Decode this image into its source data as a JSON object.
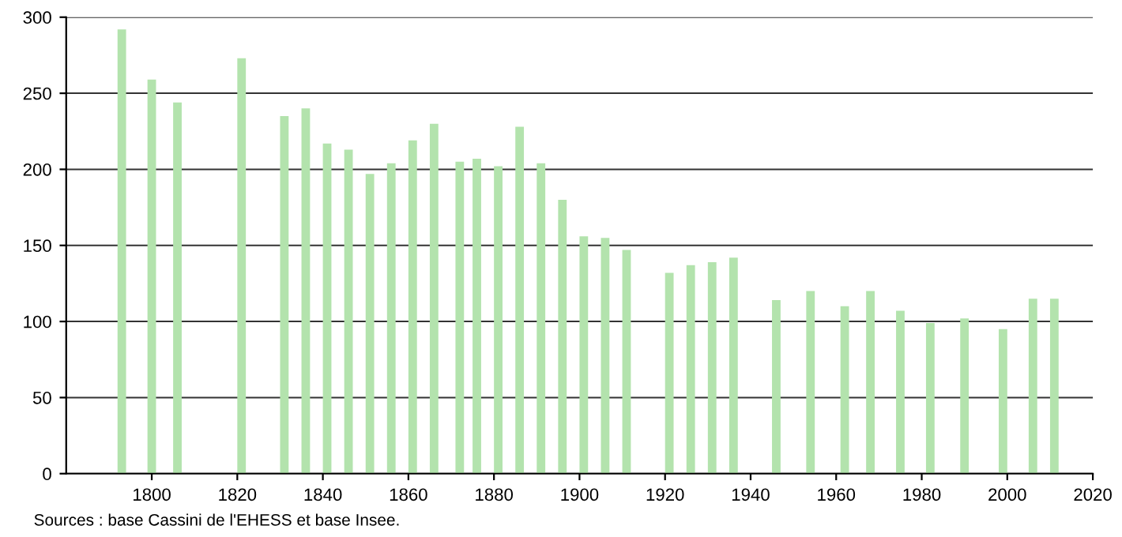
{
  "chart_data": {
    "type": "bar",
    "x": [
      1793,
      1800,
      1806,
      1821,
      1831,
      1836,
      1841,
      1846,
      1851,
      1856,
      1861,
      1866,
      1872,
      1876,
      1881,
      1886,
      1891,
      1896,
      1901,
      1906,
      1911,
      1921,
      1926,
      1931,
      1936,
      1946,
      1954,
      1962,
      1968,
      1975,
      1982,
      1990,
      1999,
      2006,
      2011
    ],
    "values": [
      292,
      259,
      244,
      273,
      235,
      240,
      217,
      213,
      197,
      204,
      219,
      230,
      205,
      207,
      202,
      228,
      204,
      180,
      156,
      155,
      147,
      132,
      137,
      139,
      142,
      114,
      120,
      110,
      120,
      107,
      99,
      102,
      95,
      115,
      115
    ],
    "color": "#b3e3ad",
    "xlim": [
      1780,
      2020
    ],
    "xticks": [
      1800,
      1820,
      1840,
      1860,
      1880,
      1900,
      1920,
      1940,
      1960,
      1980,
      2000,
      2020
    ],
    "ylim": [
      0,
      300
    ],
    "yticks": [
      0,
      50,
      100,
      150,
      200,
      250,
      300
    ],
    "grid": "y",
    "annotations": [
      "Sources : base Cassini de l'EHESS et base Insee."
    ]
  }
}
